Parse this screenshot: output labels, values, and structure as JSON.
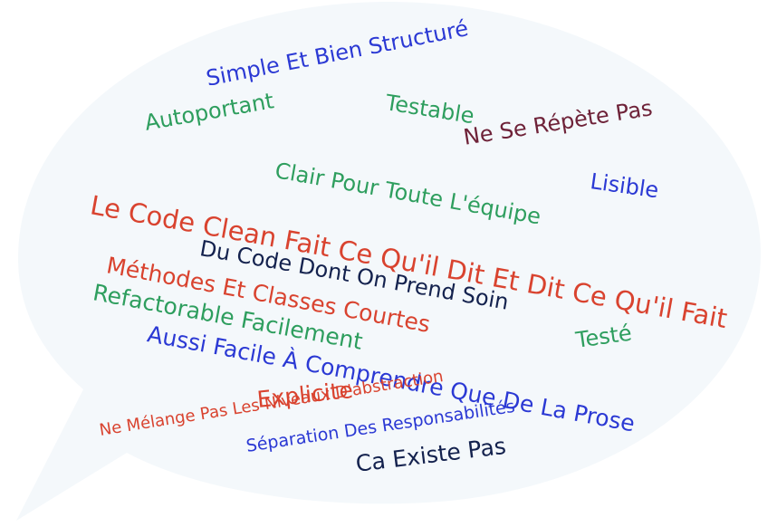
{
  "colors": {
    "bubble_fill": "#f4f8fb",
    "green": "#2e9e5e",
    "blue": "#2b39d4",
    "red": "#d9432f",
    "navy": "#14224e",
    "maroon": "#6e2238"
  },
  "words": {
    "w01": {
      "text": "Simple Et Bien Structuré",
      "color": "blue"
    },
    "w02": {
      "text": "Autoportant",
      "color": "green"
    },
    "w03": {
      "text": "Testable",
      "color": "green"
    },
    "w04": {
      "text": "Ne Se Répète Pas",
      "color": "maroon"
    },
    "w05": {
      "text": "Clair Pour Toute L'équipe",
      "color": "green"
    },
    "w06": {
      "text": "Lisible",
      "color": "blue"
    },
    "w07": {
      "text": "Le Code Clean Fait Ce Qu'il Dit Et Dit Ce Qu'il Fait",
      "color": "red"
    },
    "w08": {
      "text": "Du Code Dont On Prend Soin",
      "color": "navy"
    },
    "w09": {
      "text": "Méthodes Et Classes Courtes",
      "color": "red"
    },
    "w10": {
      "text": "Refactorable Facilement",
      "color": "green"
    },
    "w11": {
      "text": "Aussi Facile À Comprendre Que De La Prose",
      "color": "blue"
    },
    "w12": {
      "text": "Testé",
      "color": "green"
    },
    "w13": {
      "text": "Explicite",
      "color": "red"
    },
    "w14": {
      "text": "Ne Mélange Pas Les Niveaux D'abstraction",
      "color": "red"
    },
    "w15": {
      "text": "Séparation Des Responsabilités",
      "color": "blue"
    },
    "w16": {
      "text": "Ca Existe Pas",
      "color": "navy"
    }
  }
}
